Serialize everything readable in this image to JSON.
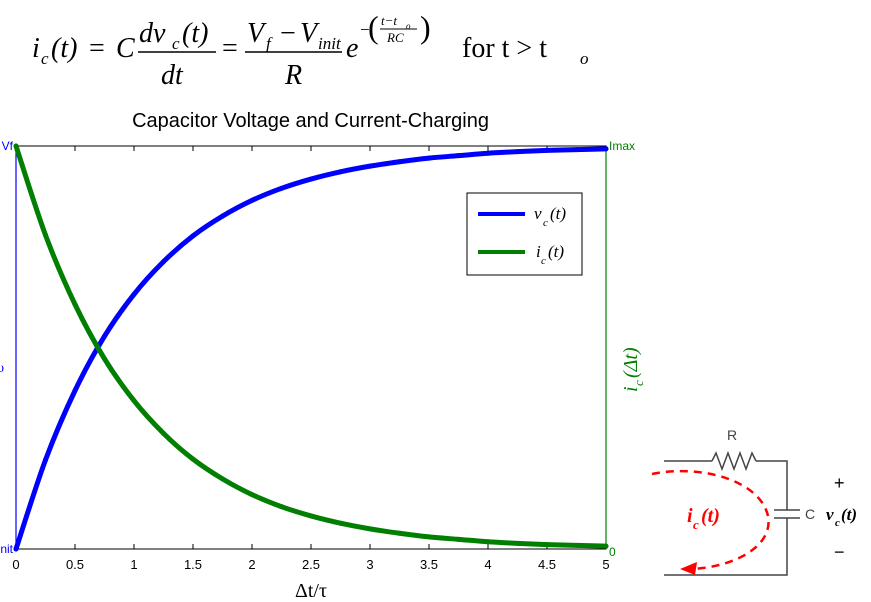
{
  "equation": {
    "lhs": "i",
    "lhs_sub": "c",
    "lhs_arg": "(t)",
    "eq1": "=",
    "coef": "C",
    "num1": "dv",
    "num1_sub": "c",
    "num1_arg": "(t)",
    "den1": "dt",
    "eq2": "=",
    "num2_a": "V",
    "num2_a_sub": "f",
    "num2_minus": "−",
    "num2_b": "V",
    "num2_b_sub": "init",
    "den2": "R",
    "exp_base": "e",
    "exp_minus": "−",
    "exp_num": "t−t",
    "exp_num_sub": "o",
    "exp_den": "RC",
    "condition": "for t > t",
    "condition_sub": "o"
  },
  "chart_data": {
    "type": "line",
    "title": "Capacitor Voltage and Current-Charging",
    "xlabel": "Δt/τ",
    "ylabel_left": "υ",
    "ylabel_right": "i",
    "ylabel_right_sub": "c",
    "ylabel_right_arg": "(Δt)",
    "xlim": [
      0,
      5
    ],
    "ylim": [
      0,
      1
    ],
    "x_ticks": [
      "0",
      "0.5",
      "1",
      "1.5",
      "2",
      "2.5",
      "3",
      "3.5",
      "4",
      "4.5",
      "5"
    ],
    "left_ticks": {
      "top": "Vf",
      "bottom": "Vinit"
    },
    "right_ticks": {
      "top": "Imax",
      "bottom": "0"
    },
    "grid": false,
    "legend_position": "top-right",
    "x": [
      0,
      0.25,
      0.5,
      0.75,
      1,
      1.25,
      1.5,
      1.75,
      2,
      2.25,
      2.5,
      2.75,
      3,
      3.25,
      3.5,
      3.75,
      4,
      4.25,
      4.5,
      4.75,
      5
    ],
    "series": [
      {
        "name": "v",
        "name_sub": "c",
        "name_arg": "(t)",
        "color": "#0000ff",
        "values": [
          0,
          0.221,
          0.393,
          0.528,
          0.632,
          0.713,
          0.777,
          0.826,
          0.865,
          0.895,
          0.918,
          0.936,
          0.95,
          0.961,
          0.97,
          0.976,
          0.982,
          0.986,
          0.989,
          0.991,
          0.993
        ]
      },
      {
        "name": "i",
        "name_sub": "c",
        "name_arg": "(t)",
        "color": "#007f00",
        "values": [
          1,
          0.779,
          0.607,
          0.472,
          0.368,
          0.287,
          0.223,
          0.174,
          0.135,
          0.105,
          0.082,
          0.064,
          0.05,
          0.039,
          0.03,
          0.024,
          0.018,
          0.014,
          0.011,
          0.009,
          0.007
        ]
      }
    ]
  },
  "circuit": {
    "resistor_label": "R",
    "capacitor_label": "C",
    "plus": "+",
    "minus": "−",
    "voltage_label": "v",
    "voltage_sub": "c",
    "voltage_arg": "(t)",
    "current_label": "i",
    "current_sub": "c",
    "current_arg": "(t)",
    "current_color": "#ff0000"
  }
}
